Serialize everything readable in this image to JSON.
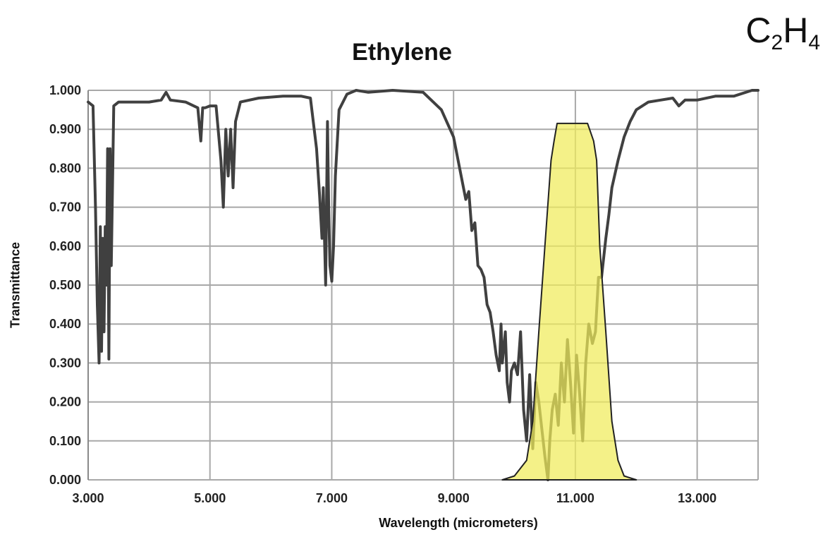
{
  "chart_data": {
    "type": "line",
    "title": "Ethylene",
    "formula": {
      "base1": "C",
      "sub1": "2",
      "base2": "H",
      "sub2": "4"
    },
    "xlabel": "Wavelength (micrometers)",
    "ylabel": "Transmittance",
    "xlim": [
      3.0,
      14.0
    ],
    "ylim": [
      0.0,
      1.0
    ],
    "x_ticks": [
      3.0,
      5.0,
      7.0,
      9.0,
      11.0,
      13.0
    ],
    "x_tick_labels": [
      "3.000",
      "5.000",
      "7.000",
      "9.000",
      "11.000",
      "13.000"
    ],
    "y_ticks": [
      0.0,
      0.1,
      0.2,
      0.3,
      0.4,
      0.5,
      0.6,
      0.7,
      0.8,
      0.9,
      1.0
    ],
    "y_tick_labels": [
      "0.000",
      "0.100",
      "0.200",
      "0.300",
      "0.400",
      "0.500",
      "0.600",
      "0.700",
      "0.800",
      "0.900",
      "1.000"
    ],
    "grid": true,
    "series": [
      {
        "color": "#404040",
        "x": [
          3.0,
          3.08,
          3.12,
          3.15,
          3.18,
          3.2,
          3.22,
          3.24,
          3.26,
          3.28,
          3.3,
          3.32,
          3.34,
          3.36,
          3.38,
          3.42,
          3.5,
          4.0,
          4.2,
          4.28,
          4.35,
          4.6,
          4.8,
          4.85,
          4.88,
          4.92,
          5.0,
          5.1,
          5.18,
          5.22,
          5.26,
          5.3,
          5.34,
          5.38,
          5.42,
          5.5,
          5.8,
          6.2,
          6.5,
          6.65,
          6.75,
          6.8,
          6.84,
          6.86,
          6.9,
          6.93,
          6.95,
          6.97,
          7.0,
          7.03,
          7.06,
          7.12,
          7.25,
          7.4,
          7.6,
          8.0,
          8.5,
          8.8,
          9.0,
          9.1,
          9.2,
          9.25,
          9.3,
          9.35,
          9.4,
          9.45,
          9.5,
          9.55,
          9.6,
          9.65,
          9.7,
          9.75,
          9.78,
          9.8,
          9.85,
          9.88,
          9.92,
          9.95,
          10.0,
          10.05,
          10.1,
          10.15,
          10.2,
          10.25,
          10.3,
          10.35,
          10.4,
          10.5,
          10.55,
          10.58,
          10.62,
          10.67,
          10.72,
          10.77,
          10.82,
          10.87,
          10.92,
          10.97,
          11.02,
          11.07,
          11.12,
          11.17,
          11.22,
          11.28,
          11.33,
          11.38,
          11.43,
          11.5,
          11.55,
          11.6,
          11.7,
          11.8,
          11.9,
          12.0,
          12.2,
          12.4,
          12.6,
          12.7,
          12.8,
          13.0,
          13.3,
          13.6,
          13.9,
          14.0
        ],
        "y": [
          0.97,
          0.96,
          0.7,
          0.45,
          0.3,
          0.65,
          0.33,
          0.62,
          0.38,
          0.65,
          0.5,
          0.85,
          0.31,
          0.85,
          0.55,
          0.96,
          0.97,
          0.97,
          0.975,
          0.995,
          0.975,
          0.97,
          0.955,
          0.87,
          0.955,
          0.955,
          0.96,
          0.96,
          0.82,
          0.7,
          0.9,
          0.78,
          0.9,
          0.75,
          0.92,
          0.97,
          0.98,
          0.985,
          0.985,
          0.98,
          0.85,
          0.73,
          0.62,
          0.75,
          0.5,
          0.92,
          0.7,
          0.55,
          0.51,
          0.6,
          0.78,
          0.95,
          0.99,
          1.0,
          0.995,
          1.0,
          0.995,
          0.95,
          0.88,
          0.8,
          0.72,
          0.74,
          0.64,
          0.66,
          0.55,
          0.54,
          0.52,
          0.45,
          0.43,
          0.38,
          0.32,
          0.28,
          0.4,
          0.3,
          0.38,
          0.25,
          0.2,
          0.28,
          0.3,
          0.27,
          0.38,
          0.18,
          0.1,
          0.27,
          0.08,
          0.25,
          0.2,
          0.06,
          0.0,
          0.1,
          0.18,
          0.22,
          0.14,
          0.3,
          0.2,
          0.36,
          0.25,
          0.12,
          0.32,
          0.22,
          0.1,
          0.3,
          0.4,
          0.35,
          0.38,
          0.52,
          0.52,
          0.62,
          0.68,
          0.75,
          0.82,
          0.88,
          0.92,
          0.95,
          0.97,
          0.975,
          0.98,
          0.96,
          0.975,
          0.975,
          0.985,
          0.985,
          1.0,
          1.0
        ]
      }
    ],
    "band": {
      "color": "#f0ec5a",
      "x": [
        9.8,
        10.0,
        10.2,
        10.3,
        10.4,
        10.5,
        10.6,
        10.65,
        10.7,
        10.8,
        11.0,
        11.2,
        11.3,
        11.35,
        11.4,
        11.5,
        11.6,
        11.7,
        11.8,
        12.0
      ],
      "y": [
        0.0,
        0.01,
        0.05,
        0.15,
        0.38,
        0.6,
        0.82,
        0.87,
        0.915,
        0.915,
        0.915,
        0.915,
        0.87,
        0.82,
        0.6,
        0.38,
        0.15,
        0.05,
        0.01,
        0.0
      ]
    }
  }
}
